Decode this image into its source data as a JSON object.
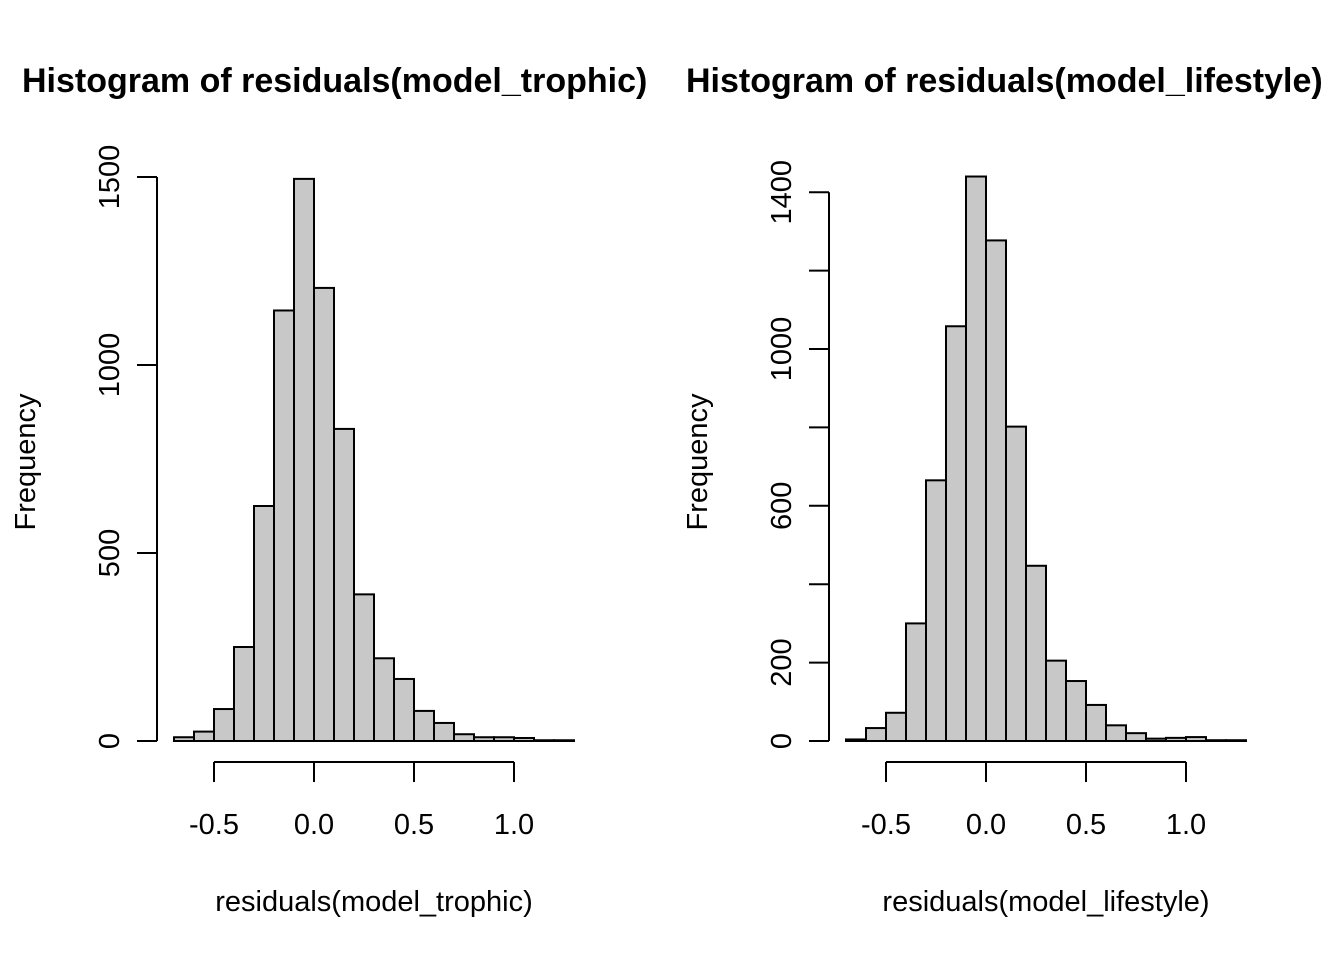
{
  "chart_data": [
    {
      "type": "bar",
      "title": "Histogram of residuals(model_trophic)",
      "xlabel": "residuals(model_trophic)",
      "ylabel": "Frequency",
      "x_ticks": [
        "-0.5",
        "0.0",
        "0.5",
        "1.0"
      ],
      "y_ticks": [
        "0",
        "500",
        "1000",
        "1500"
      ],
      "ylim": [
        0,
        1500
      ],
      "bin_edges": [
        -0.7,
        -0.6,
        -0.5,
        -0.4,
        -0.3,
        -0.2,
        -0.1,
        0.0,
        0.1,
        0.2,
        0.3,
        0.4,
        0.5,
        0.6,
        0.7,
        0.8,
        0.9,
        1.0,
        1.1,
        1.2,
        1.3
      ],
      "values": [
        10,
        25,
        85,
        250,
        625,
        1145,
        1495,
        1205,
        830,
        390,
        220,
        165,
        80,
        48,
        18,
        10,
        10,
        8,
        2,
        2
      ],
      "bar_color": "#c8c8c8"
    },
    {
      "type": "bar",
      "title": "Histogram of residuals(model_lifestyle)",
      "xlabel": "residuals(model_lifestyle)",
      "ylabel": "Frequency",
      "x_ticks": [
        "-0.5",
        "0.0",
        "0.5",
        "1.0"
      ],
      "y_ticks": [
        "0",
        "200",
        "600",
        "1000",
        "1400"
      ],
      "y_tick_values": [
        0,
        200,
        400,
        600,
        800,
        1000,
        1200,
        1400
      ],
      "ylim": [
        0,
        1400
      ],
      "bin_edges": [
        -0.7,
        -0.6,
        -0.5,
        -0.4,
        -0.3,
        -0.2,
        -0.1,
        0.0,
        0.1,
        0.2,
        0.3,
        0.4,
        0.5,
        0.6,
        0.7,
        0.8,
        0.9,
        1.0,
        1.1,
        1.2,
        1.3
      ],
      "values": [
        4,
        33,
        72,
        300,
        665,
        1058,
        1440,
        1277,
        802,
        447,
        205,
        153,
        92,
        40,
        20,
        6,
        8,
        10,
        2,
        2
      ],
      "bar_color": "#c8c8c8"
    }
  ]
}
